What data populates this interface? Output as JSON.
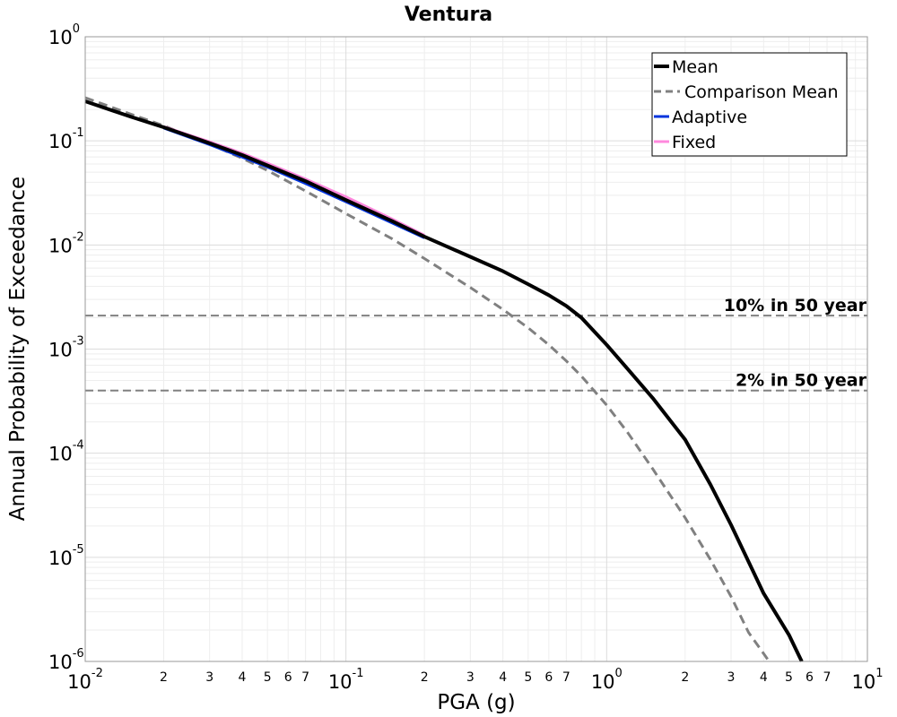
{
  "chart_data": {
    "type": "line",
    "title": "Ventura",
    "xlabel": "PGA (g)",
    "ylabel": "Annual Probability of Exceedance",
    "xscale": "log",
    "yscale": "log",
    "xlim": [
      0.01,
      10
    ],
    "ylim": [
      1e-06,
      1
    ],
    "grid": true,
    "legend_position": "top-right",
    "x_major_ticks": [
      {
        "value": 0.01,
        "base": "10",
        "exp": "-2"
      },
      {
        "value": 0.1,
        "base": "10",
        "exp": "-1"
      },
      {
        "value": 1,
        "base": "10",
        "exp": "0"
      },
      {
        "value": 10,
        "base": "10",
        "exp": "1"
      }
    ],
    "x_minor_labels": [
      "2",
      "3",
      "4",
      "5",
      "6",
      "7"
    ],
    "y_major_ticks": [
      {
        "value": 1,
        "base": "10",
        "exp": "0"
      },
      {
        "value": 0.1,
        "base": "10",
        "exp": "-1"
      },
      {
        "value": 0.01,
        "base": "10",
        "exp": "-2"
      },
      {
        "value": 0.001,
        "base": "10",
        "exp": "-3"
      },
      {
        "value": 0.0001,
        "base": "10",
        "exp": "-4"
      },
      {
        "value": 1e-05,
        "base": "10",
        "exp": "-5"
      },
      {
        "value": 1e-06,
        "base": "10",
        "exp": "-6"
      }
    ],
    "reference_lines": [
      {
        "label": "10% in 50 year",
        "y": 0.0021
      },
      {
        "label": "2% in 50 year",
        "y": 0.0004
      }
    ],
    "series": [
      {
        "name": "Mean",
        "color": "#000000",
        "style": "solid",
        "x": [
          0.01,
          0.015,
          0.02,
          0.03,
          0.04,
          0.05,
          0.07,
          0.1,
          0.15,
          0.2,
          0.3,
          0.4,
          0.5,
          0.6,
          0.7,
          0.8,
          1.0,
          1.2,
          1.5,
          2.0,
          2.5,
          3.0,
          4.0,
          5.0,
          5.6
        ],
        "y": [
          0.24,
          0.17,
          0.135,
          0.095,
          0.073,
          0.058,
          0.041,
          0.027,
          0.017,
          0.012,
          0.0077,
          0.0056,
          0.0042,
          0.0033,
          0.0026,
          0.002,
          0.0011,
          0.00065,
          0.00034,
          0.000135,
          5e-05,
          2.05e-05,
          4.5e-06,
          1.8e-06,
          1e-06
        ]
      },
      {
        "name": "Comparison Mean",
        "color": "#808080",
        "style": "dashed",
        "x": [
          0.01,
          0.015,
          0.02,
          0.03,
          0.04,
          0.05,
          0.07,
          0.1,
          0.15,
          0.2,
          0.3,
          0.4,
          0.5,
          0.6,
          0.7,
          0.8,
          1.0,
          1.2,
          1.5,
          2.0,
          2.5,
          3.0,
          3.5,
          4.2
        ],
        "y": [
          0.26,
          0.18,
          0.14,
          0.093,
          0.068,
          0.052,
          0.033,
          0.02,
          0.0115,
          0.0074,
          0.0039,
          0.0024,
          0.0016,
          0.0011,
          0.00077,
          0.00055,
          0.00029,
          0.00016,
          7.1e-05,
          2.4e-05,
          9.5e-06,
          4.2e-06,
          1.9e-06,
          1e-06
        ]
      },
      {
        "name": "Adaptive",
        "color": "#0033dd",
        "style": "solid",
        "x": [
          0.02,
          0.03,
          0.04,
          0.05,
          0.07,
          0.1,
          0.15,
          0.2
        ],
        "y": [
          0.133,
          0.092,
          0.07,
          0.056,
          0.039,
          0.026,
          0.0163,
          0.0117
        ]
      },
      {
        "name": "Fixed",
        "color": "#ff88dd",
        "style": "solid",
        "x": [
          0.02,
          0.03,
          0.04,
          0.05,
          0.07,
          0.1,
          0.15,
          0.2
        ],
        "y": [
          0.137,
          0.098,
          0.076,
          0.061,
          0.043,
          0.029,
          0.0178,
          0.0124
        ]
      }
    ]
  }
}
